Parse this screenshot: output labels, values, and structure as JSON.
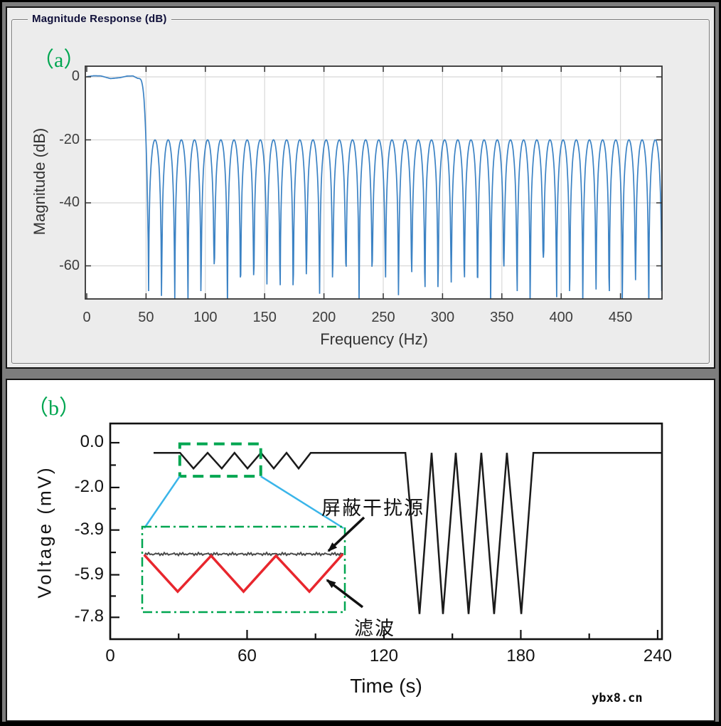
{
  "watermark": "ybx8.cn",
  "panel_a": {
    "label": "（a）",
    "groupbox_title": "Magnitude Response (dB)"
  },
  "panel_b": {
    "label": "（b）"
  },
  "annotations": {
    "shield_label": "屏蔽干扰源",
    "filter_label": "滤波"
  },
  "colors": {
    "response_line": "#3B82C4",
    "trace_line": "#1a1a1a",
    "filtered_wave": "#E8262D",
    "shielded_line": "#4a4a4a",
    "annotation_green": "#00A651",
    "connector_cyan": "#3AB5E9",
    "panel_a_bg": "#ECECEC",
    "grid": "#d8d8d8"
  },
  "chart_data": [
    {
      "type": "line",
      "title": "Magnitude Response (dB)",
      "xlabel": "Frequency (Hz)",
      "ylabel": "Magnitude (dB)",
      "xlim": [
        0,
        485
      ],
      "ylim": [
        -70.5,
        3.4
      ],
      "xticks": [
        0,
        50,
        100,
        150,
        200,
        250,
        300,
        350,
        400,
        450
      ],
      "yticks": [
        0,
        -20,
        -40,
        -60
      ],
      "grid": true,
      "series": [
        {
          "name": "filter-magnitude-response",
          "color": "#3B82C4",
          "passband_gain_db": 0,
          "passband_edge_hz": 43,
          "cutoff_hz": 50,
          "first_notch_hz": 52,
          "notch_spacing_hz": 11.1,
          "stopband_lobe_peak_db": -20,
          "notch_depth_db_range": [
            -57,
            -73
          ],
          "passband_ripple_points": [
            [
              0,
              0.05
            ],
            [
              6,
              0.35
            ],
            [
              12,
              0.3
            ],
            [
              20,
              -0.55
            ],
            [
              28,
              -0.25
            ],
            [
              34,
              0.25
            ],
            [
              39,
              0.3
            ],
            [
              43,
              -0.5
            ]
          ]
        }
      ]
    },
    {
      "type": "line",
      "xlabel": "Time (s)",
      "ylabel": "Voltage (mV)",
      "xlim": [
        0,
        242.5
      ],
      "ylim": [
        -8.8,
        0.9
      ],
      "xticks_major": [
        0,
        60,
        120,
        180,
        240
      ],
      "xticks_minor": [
        30,
        90,
        150,
        210
      ],
      "yticks_major": [
        0,
        -2,
        -3.9,
        -5.9,
        -7.8
      ],
      "ytick_labels": [
        "0.0",
        "-2.0",
        "-3.9",
        "-5.9",
        "-7.8"
      ],
      "series": [
        {
          "name": "voltage-trace",
          "color": "#1a1a1a",
          "points": [
            [
              19,
              -0.45
            ],
            [
              30.6,
              -0.45
            ],
            [
              36.5,
              -1.15
            ],
            [
              42.7,
              -0.45
            ],
            [
              48.9,
              -1.15
            ],
            [
              54.5,
              -0.45
            ],
            [
              60.2,
              -1.15
            ],
            [
              66.1,
              -0.45
            ],
            [
              71.7,
              -1.15
            ],
            [
              77.3,
              -0.45
            ],
            [
              82.6,
              -1.15
            ],
            [
              87.9,
              -0.45
            ],
            [
              129.4,
              -0.45
            ],
            [
              135.6,
              -7.65
            ],
            [
              140.9,
              -0.45
            ],
            [
              145.9,
              -7.65
            ],
            [
              151.5,
              -0.45
            ],
            [
              157.1,
              -7.65
            ],
            [
              162.7,
              -0.45
            ],
            [
              168.3,
              -7.65
            ],
            [
              173.9,
              -0.45
            ],
            [
              180.2,
              -7.65
            ],
            [
              185.5,
              -0.45
            ],
            [
              242,
              -0.45
            ]
          ]
        }
      ],
      "zoom_region": {
        "t_range": [
          30.5,
          66
        ],
        "v_range": [
          -0.05,
          -1.5
        ]
      },
      "inset": {
        "shielded_level_frac": 0.32,
        "filtered_points_frac": [
          [
            0.01,
            0.33
          ],
          [
            0.175,
            0.76
          ],
          [
            0.34,
            0.34
          ],
          [
            0.5,
            0.76
          ],
          [
            0.66,
            0.34
          ],
          [
            0.825,
            0.76
          ],
          [
            0.99,
            0.32
          ]
        ]
      }
    }
  ]
}
